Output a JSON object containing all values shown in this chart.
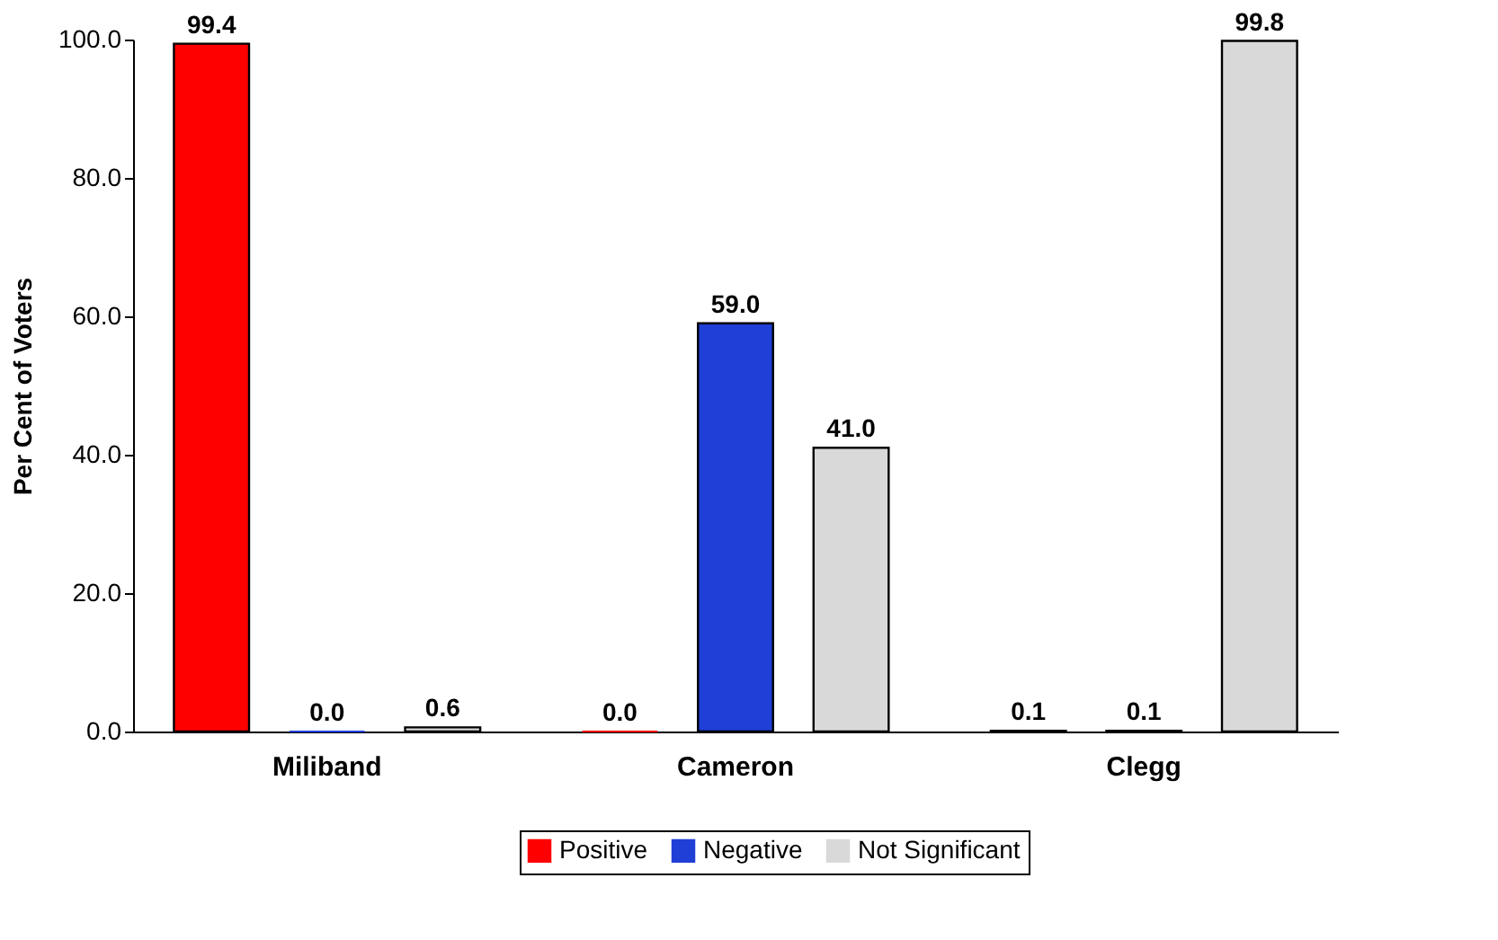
{
  "chart_data": {
    "type": "bar",
    "ylabel": "Per Cent of Voters",
    "categories": [
      "Miliband",
      "Cameron",
      "Clegg"
    ],
    "series": [
      {
        "name": "Positive",
        "color": "#ff0000",
        "values": [
          99.4,
          0.0,
          0.1
        ],
        "value_labels": [
          "99.4",
          "0.0",
          "0.1"
        ]
      },
      {
        "name": "Negative",
        "color": "#1f3fd6",
        "values": [
          0.0,
          59.0,
          0.1
        ],
        "value_labels": [
          "0.0",
          "59.0",
          "0.1"
        ]
      },
      {
        "name": "Not Significant",
        "color": "#d9d9d9",
        "values": [
          0.6,
          41.0,
          99.8
        ],
        "value_labels": [
          "0.6",
          "41.0",
          "99.8"
        ]
      }
    ],
    "ylim": [
      0,
      100
    ],
    "yticks": [
      {
        "value": 0,
        "label": "0.0"
      },
      {
        "value": 20,
        "label": "20.0"
      },
      {
        "value": 40,
        "label": "40.0"
      },
      {
        "value": 60,
        "label": "60.0"
      },
      {
        "value": 80,
        "label": "80.0"
      },
      {
        "value": 100,
        "label": "100.0"
      }
    ],
    "grid": false,
    "legend": "bottom"
  }
}
